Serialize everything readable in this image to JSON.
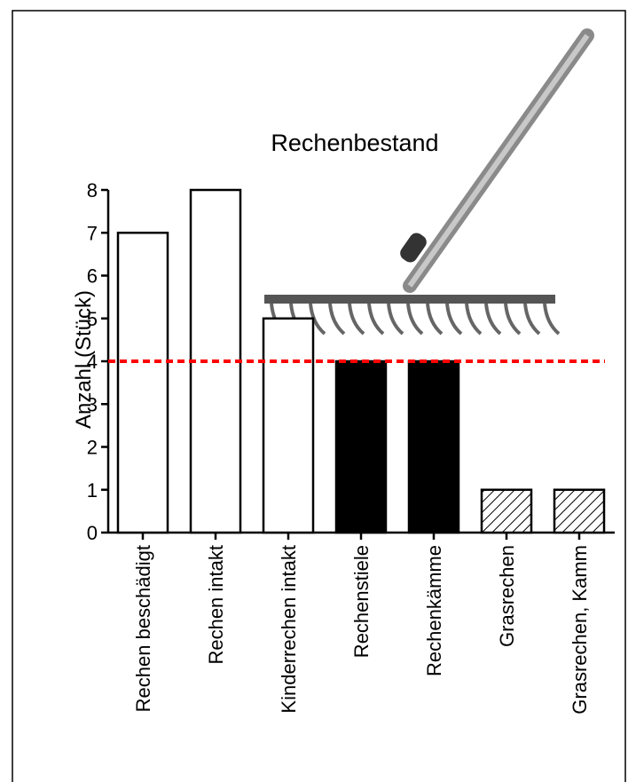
{
  "chart_data": {
    "type": "bar",
    "title": "Rechenbestand",
    "y_label": "Anzahl (Stück)",
    "categories": [
      "Rechen beschädigt",
      "Rechen intakt",
      "Kinderrechen intakt",
      "Rechenstiele",
      "Rechenkämme",
      "Grasrechen",
      "Grasrechen, Kamm"
    ],
    "values": [
      7,
      8,
      5,
      4,
      4,
      1,
      1
    ],
    "colors": [
      "#ffffff",
      "#ffffff",
      "#ffffff",
      "#000000",
      "#000000",
      "#ffffff",
      "#ffffff"
    ],
    "hatch": [
      false,
      false,
      false,
      false,
      false,
      true,
      true
    ],
    "reference_line": {
      "value": 4,
      "color": "#ff0000"
    },
    "ylim": [
      0,
      8
    ],
    "yticks": [
      0,
      1,
      2,
      3,
      4,
      5,
      6,
      7,
      8
    ]
  }
}
